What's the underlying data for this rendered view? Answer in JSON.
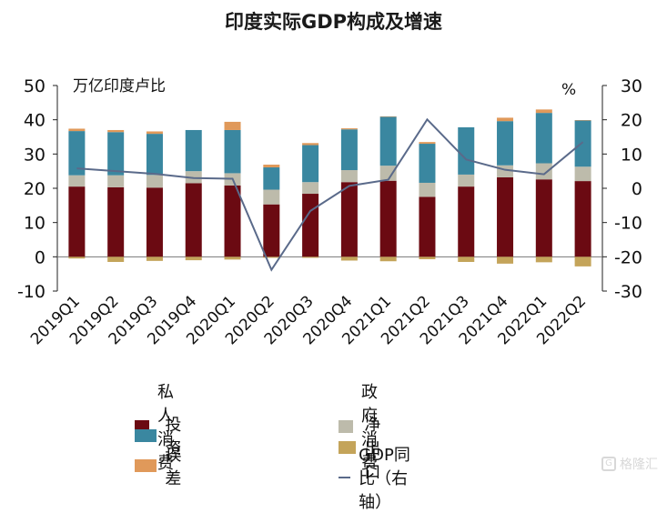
{
  "chart_data": {
    "type": "bar",
    "title": "印度实际GDP构成及增速",
    "left_axis": {
      "unit_label": "万亿印度卢比",
      "ylim": [
        -10,
        50
      ],
      "ticks": [
        -10,
        0,
        10,
        20,
        30,
        40,
        50
      ]
    },
    "right_axis": {
      "unit_label": "%",
      "ylim": [
        -30,
        30
      ],
      "ticks": [
        -30,
        -20,
        -10,
        0,
        10,
        20,
        30
      ]
    },
    "categories": [
      "2019Q1",
      "2019Q2",
      "2019Q3",
      "2019Q4",
      "2020Q1",
      "2020Q2",
      "2020Q3",
      "2020Q4",
      "2021Q1",
      "2021Q2",
      "2021Q3",
      "2021Q4",
      "2022Q1",
      "2022Q2"
    ],
    "series": [
      {
        "name": "私人消费",
        "kind": "bar",
        "color": "#6b0a12",
        "values": [
          20.5,
          20.3,
          20.2,
          21.5,
          20.8,
          15.3,
          18.4,
          21.8,
          22.2,
          17.5,
          20.5,
          23.2,
          22.6,
          22.1
        ]
      },
      {
        "name": "政府消费",
        "kind": "bar",
        "color": "#bdbbab",
        "values": [
          3.3,
          3.5,
          3.7,
          3.5,
          3.6,
          4.3,
          3.4,
          3.5,
          4.4,
          4.1,
          3.5,
          3.5,
          4.7,
          4.2
        ]
      },
      {
        "name": "投资",
        "kind": "bar",
        "color": "#3a87a0",
        "values": [
          12.9,
          12.6,
          12.0,
          12.0,
          12.6,
          6.5,
          10.8,
          11.9,
          14.3,
          11.4,
          13.8,
          12.9,
          14.7,
          13.5
        ]
      },
      {
        "name": "净出口",
        "kind": "bar",
        "color": "#c4a45a",
        "values": [
          -0.5,
          -1.5,
          -1.2,
          -1.0,
          -0.8,
          -0.3,
          -0.3,
          -1.1,
          -1.3,
          -0.7,
          -1.5,
          -2.0,
          -1.6,
          -2.8
        ]
      },
      {
        "name": "误差",
        "kind": "bar",
        "color": "#e0995a",
        "values": [
          0.7,
          0.6,
          0.7,
          0.0,
          2.4,
          0.8,
          0.6,
          0.3,
          0.1,
          0.5,
          0.0,
          1.0,
          1.0,
          0.1
        ]
      },
      {
        "name": "GDP同比（右轴）",
        "kind": "line",
        "axis": "right",
        "color": "#5a6a8a",
        "values": [
          5.8,
          5.0,
          4.2,
          3.0,
          2.8,
          -23.8,
          -6.6,
          0.7,
          2.5,
          20.1,
          8.4,
          5.4,
          4.1,
          13.5
        ]
      }
    ],
    "legend_placement": "bottom",
    "grid": false
  },
  "watermark": {
    "icon": "G",
    "text": "格隆汇"
  }
}
